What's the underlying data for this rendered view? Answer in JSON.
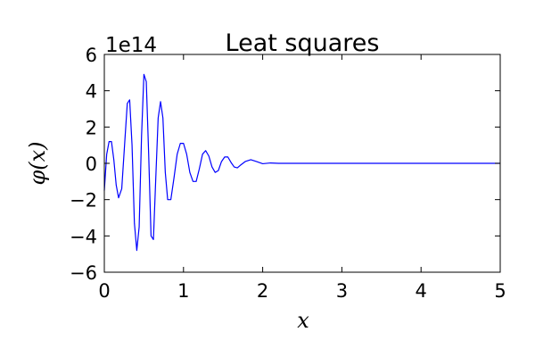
{
  "chart_data": {
    "type": "line",
    "title": "Leat squares",
    "xlabel": "x",
    "ylabel": "φ(x)",
    "y_offset_label": "1e14",
    "xlim": [
      0,
      5
    ],
    "ylim": [
      -6,
      6
    ],
    "x_ticks": [
      0,
      1,
      2,
      3,
      4,
      5
    ],
    "y_ticks": [
      -6,
      -4,
      -2,
      0,
      2,
      4,
      6
    ],
    "x_tick_labels": [
      "0",
      "1",
      "2",
      "3",
      "4",
      "5"
    ],
    "y_tick_labels": [
      "−6",
      "−4",
      "−2",
      "0",
      "2",
      "4",
      "6"
    ],
    "grid": false,
    "line_color": "#0000ff",
    "series": [
      {
        "x": [
          0,
          0.03,
          0.06,
          0.09,
          0.12,
          0.15,
          0.18,
          0.22,
          0.26,
          0.29,
          0.32,
          0.35,
          0.38,
          0.41,
          0.44,
          0.47,
          0.5,
          0.53,
          0.56,
          0.59,
          0.62,
          0.65,
          0.68,
          0.71,
          0.74,
          0.77,
          0.8,
          0.84,
          0.88,
          0.92,
          0.96,
          1.0,
          1.04,
          1.08,
          1.12,
          1.16,
          1.2,
          1.24,
          1.28,
          1.32,
          1.36,
          1.4,
          1.44,
          1.48,
          1.52,
          1.56,
          1.6,
          1.64,
          1.68,
          1.72,
          1.78,
          1.85,
          1.92,
          2.0,
          2.1,
          2.2,
          2.5,
          3.0,
          3.5,
          4.0,
          4.5,
          5.0
        ],
        "y": [
          -1.5,
          0.5,
          1.2,
          1.2,
          0.2,
          -1.2,
          -1.9,
          -1.4,
          1.3,
          3.3,
          3.5,
          1.0,
          -3.3,
          -4.8,
          -3.5,
          1.5,
          4.9,
          4.5,
          0.5,
          -4.0,
          -4.2,
          -0.8,
          2.5,
          3.4,
          2.5,
          -0.5,
          -2.0,
          -2.0,
          -0.8,
          0.5,
          1.1,
          1.1,
          0.5,
          -0.5,
          -1.0,
          -1.0,
          -0.3,
          0.5,
          0.7,
          0.4,
          -0.2,
          -0.5,
          -0.4,
          0.1,
          0.35,
          0.35,
          0.05,
          -0.2,
          -0.25,
          -0.1,
          0.1,
          0.2,
          0.1,
          -0.02,
          0.02,
          0.0,
          0.0,
          0.0,
          0.0,
          0.0,
          0.0,
          0.0
        ]
      }
    ]
  }
}
